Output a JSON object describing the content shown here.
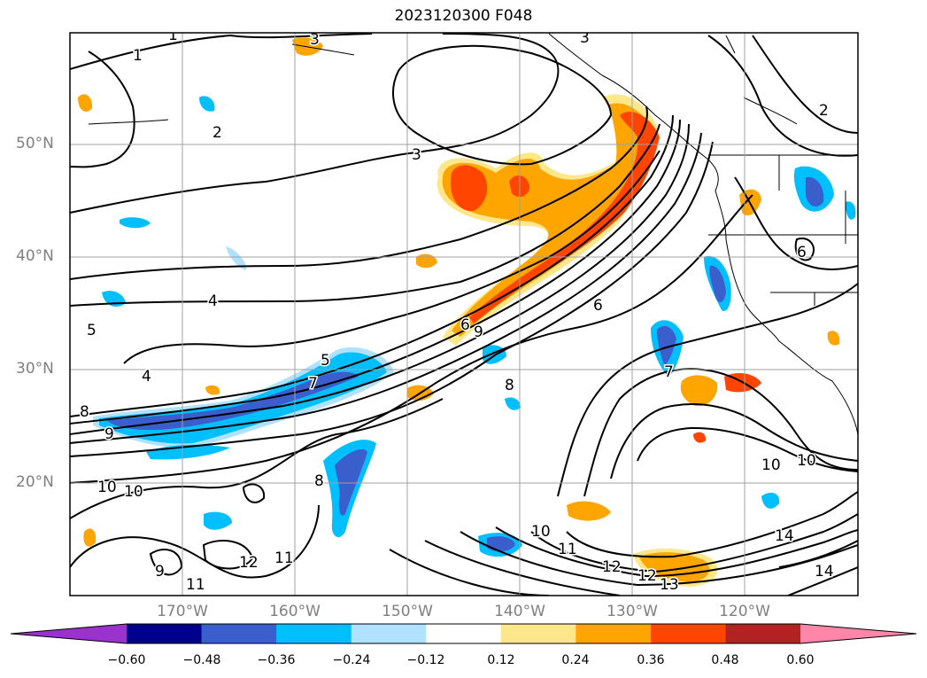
{
  "title": "2023120300 F048",
  "lat_labels": [
    "50°N",
    "40°N",
    "30°N",
    "20°N"
  ],
  "lon_labels": [
    "170°W",
    "160°W",
    "150°W",
    "140°W",
    "130°W",
    "120°W"
  ],
  "colorbar": {
    "ticks": [
      "−0.60",
      "−0.48",
      "−0.36",
      "−0.24",
      "−0.12",
      "0.12",
      "0.24",
      "0.36",
      "0.48",
      "0.60"
    ],
    "colors": [
      "#9a32cd",
      "#00008b",
      "#3a5fcd",
      "#00bfff",
      "#b0e2ff",
      "#ffffff",
      "#fce78a",
      "#ffa500",
      "#ff4500",
      "#b22222",
      "#ff86a8"
    ]
  },
  "contour_labels": [
    "1",
    "1",
    "2",
    "2",
    "3",
    "3",
    "3",
    "4",
    "4",
    "5",
    "5",
    "6",
    "6",
    "6",
    "7",
    "7",
    "8",
    "8",
    "8",
    "9",
    "9",
    "9",
    "10",
    "10",
    "10",
    "10",
    "11",
    "11",
    "11",
    "12",
    "12",
    "12",
    "13",
    "14",
    "14",
    "10"
  ]
}
